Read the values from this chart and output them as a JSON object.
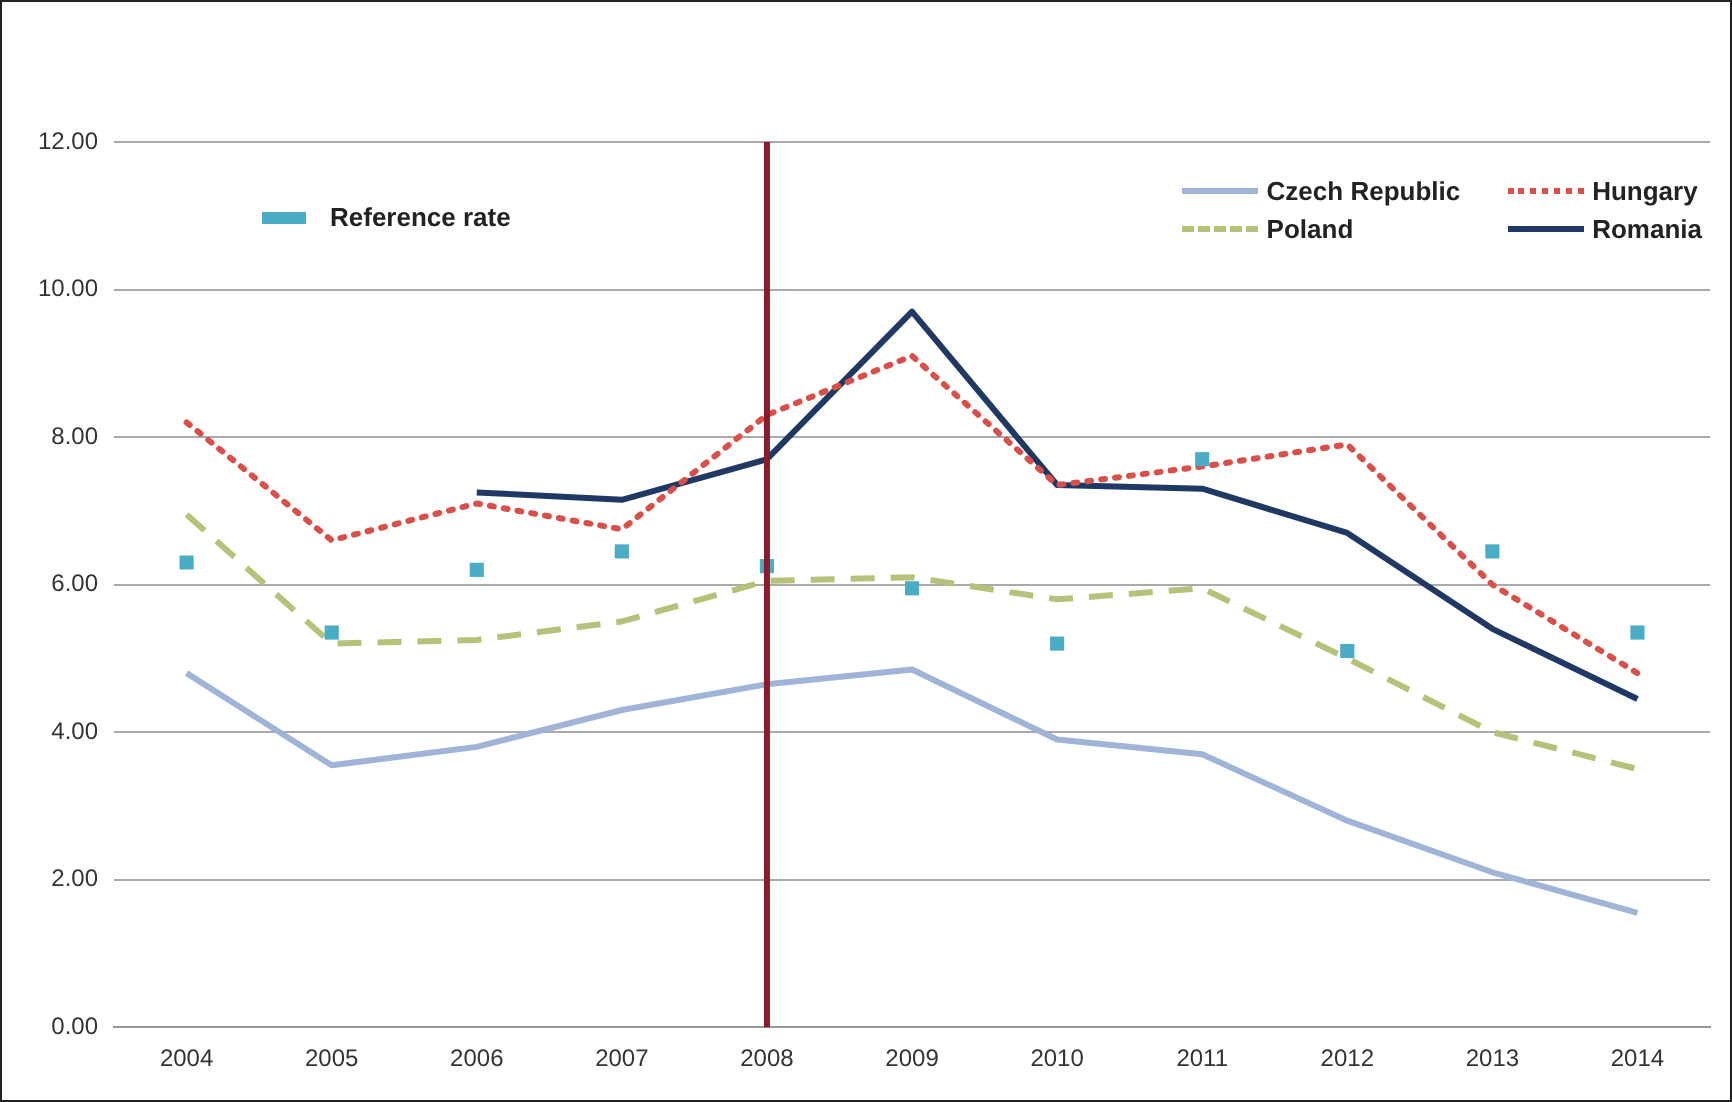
{
  "chart_data": {
    "type": "line",
    "categories": [
      "2004",
      "2005",
      "2006",
      "2007",
      "2008",
      "2009",
      "2010",
      "2011",
      "2012",
      "2013",
      "2014"
    ],
    "ylim": [
      0,
      12
    ],
    "yticks": [
      {
        "value": 0,
        "label": "0.00"
      },
      {
        "value": 2,
        "label": "2.00"
      },
      {
        "value": 4,
        "label": "4.00"
      },
      {
        "value": 6,
        "label": "6.00"
      },
      {
        "value": 8,
        "label": "8.00"
      },
      {
        "value": 10,
        "label": "10.00"
      },
      {
        "value": 12,
        "label": "12.00"
      }
    ],
    "grid": "y",
    "legend": "top right",
    "ref_lines": [
      {
        "axis": "x",
        "value": "2008",
        "color": "#8b1a2b"
      }
    ],
    "series": [
      {
        "name": "Reference rate",
        "type": "scatter",
        "color": "#4bacc6",
        "marker": "square",
        "values": [
          6.3,
          5.35,
          6.2,
          6.45,
          6.25,
          5.95,
          5.2,
          7.7,
          5.1,
          6.45,
          5.35
        ]
      },
      {
        "name": "Czech Republic",
        "color": "#9fb4d6",
        "line_style": "solid",
        "values": [
          4.8,
          3.55,
          3.8,
          4.3,
          4.65,
          4.85,
          3.9,
          3.7,
          2.8,
          2.1,
          1.55
        ]
      },
      {
        "name": "Hungary",
        "color": "#d9504a",
        "line_style": "dotted",
        "values": [
          8.2,
          6.6,
          7.1,
          6.75,
          8.3,
          9.1,
          7.35,
          7.6,
          7.9,
          6.0,
          4.8
        ]
      },
      {
        "name": "Poland",
        "color": "#b5c27a",
        "line_style": "dashed",
        "values": [
          6.95,
          5.2,
          5.25,
          5.5,
          6.05,
          6.1,
          5.8,
          5.95,
          5.0,
          4.0,
          3.5
        ]
      },
      {
        "name": "Romania",
        "color": "#1f3864",
        "line_style": "solid",
        "values": [
          null,
          null,
          7.25,
          7.15,
          7.7,
          9.7,
          7.35,
          7.3,
          6.7,
          5.4,
          4.45
        ]
      }
    ]
  }
}
